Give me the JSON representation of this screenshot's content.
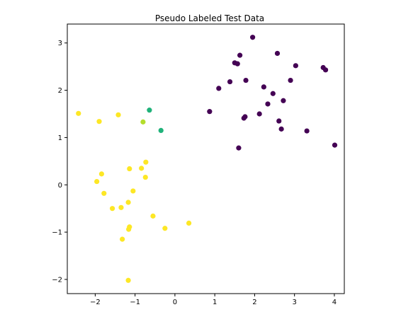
{
  "chart_data": {
    "type": "scatter",
    "title": "Pseudo Labeled Test Data",
    "xlabel": "",
    "ylabel": "",
    "xlim": [
      -2.7,
      4.25
    ],
    "ylim": [
      -2.3,
      3.4
    ],
    "xticks": [
      -2,
      -1,
      0,
      1,
      2,
      3,
      4
    ],
    "yticks": [
      -2,
      -1,
      0,
      1,
      2,
      3
    ],
    "grid": false,
    "legend": "none",
    "class_colors": {
      "purple": "#440154",
      "yellow": "#fde725",
      "green": "#20b27a",
      "lime": "#b4dd2c"
    },
    "points": [
      {
        "x": 1.95,
        "y": 3.12,
        "c": "purple"
      },
      {
        "x": 2.57,
        "y": 2.78,
        "c": "purple"
      },
      {
        "x": 1.63,
        "y": 2.74,
        "c": "purple"
      },
      {
        "x": 1.5,
        "y": 2.58,
        "c": "purple"
      },
      {
        "x": 1.57,
        "y": 2.56,
        "c": "purple"
      },
      {
        "x": 3.03,
        "y": 2.52,
        "c": "purple"
      },
      {
        "x": 3.72,
        "y": 2.48,
        "c": "purple"
      },
      {
        "x": 3.78,
        "y": 2.43,
        "c": "purple"
      },
      {
        "x": 1.78,
        "y": 2.21,
        "c": "purple"
      },
      {
        "x": 1.38,
        "y": 2.18,
        "c": "purple"
      },
      {
        "x": 2.9,
        "y": 2.21,
        "c": "purple"
      },
      {
        "x": 2.23,
        "y": 2.07,
        "c": "purple"
      },
      {
        "x": 1.1,
        "y": 2.04,
        "c": "purple"
      },
      {
        "x": 2.46,
        "y": 1.93,
        "c": "purple"
      },
      {
        "x": 2.72,
        "y": 1.78,
        "c": "purple"
      },
      {
        "x": 2.33,
        "y": 1.71,
        "c": "purple"
      },
      {
        "x": 0.87,
        "y": 1.55,
        "c": "purple"
      },
      {
        "x": 2.12,
        "y": 1.5,
        "c": "purple"
      },
      {
        "x": 1.76,
        "y": 1.44,
        "c": "purple"
      },
      {
        "x": 1.73,
        "y": 1.41,
        "c": "purple"
      },
      {
        "x": 2.61,
        "y": 1.35,
        "c": "purple"
      },
      {
        "x": 2.67,
        "y": 1.18,
        "c": "purple"
      },
      {
        "x": 3.31,
        "y": 1.14,
        "c": "purple"
      },
      {
        "x": 4.01,
        "y": 0.84,
        "c": "purple"
      },
      {
        "x": 1.6,
        "y": 0.78,
        "c": "purple"
      },
      {
        "x": -0.64,
        "y": 1.58,
        "c": "green"
      },
      {
        "x": -0.35,
        "y": 1.15,
        "c": "green"
      },
      {
        "x": -0.8,
        "y": 1.33,
        "c": "lime"
      },
      {
        "x": -2.42,
        "y": 1.51,
        "c": "yellow"
      },
      {
        "x": -1.42,
        "y": 1.48,
        "c": "yellow"
      },
      {
        "x": -1.9,
        "y": 1.34,
        "c": "yellow"
      },
      {
        "x": -0.73,
        "y": 0.48,
        "c": "yellow"
      },
      {
        "x": -0.84,
        "y": 0.35,
        "c": "yellow"
      },
      {
        "x": -1.14,
        "y": 0.34,
        "c": "yellow"
      },
      {
        "x": -1.84,
        "y": 0.23,
        "c": "yellow"
      },
      {
        "x": -0.74,
        "y": 0.16,
        "c": "yellow"
      },
      {
        "x": -1.96,
        "y": 0.07,
        "c": "yellow"
      },
      {
        "x": -1.05,
        "y": -0.13,
        "c": "yellow"
      },
      {
        "x": -1.78,
        "y": -0.18,
        "c": "yellow"
      },
      {
        "x": -1.17,
        "y": -0.37,
        "c": "yellow"
      },
      {
        "x": -1.35,
        "y": -0.48,
        "c": "yellow"
      },
      {
        "x": -1.57,
        "y": -0.5,
        "c": "yellow"
      },
      {
        "x": -0.55,
        "y": -0.66,
        "c": "yellow"
      },
      {
        "x": 0.35,
        "y": -0.81,
        "c": "yellow"
      },
      {
        "x": -1.14,
        "y": -0.89,
        "c": "yellow"
      },
      {
        "x": -0.25,
        "y": -0.92,
        "c": "yellow"
      },
      {
        "x": -1.16,
        "y": -0.94,
        "c": "yellow"
      },
      {
        "x": -1.32,
        "y": -1.15,
        "c": "yellow"
      },
      {
        "x": -1.17,
        "y": -2.02,
        "c": "yellow"
      }
    ]
  }
}
